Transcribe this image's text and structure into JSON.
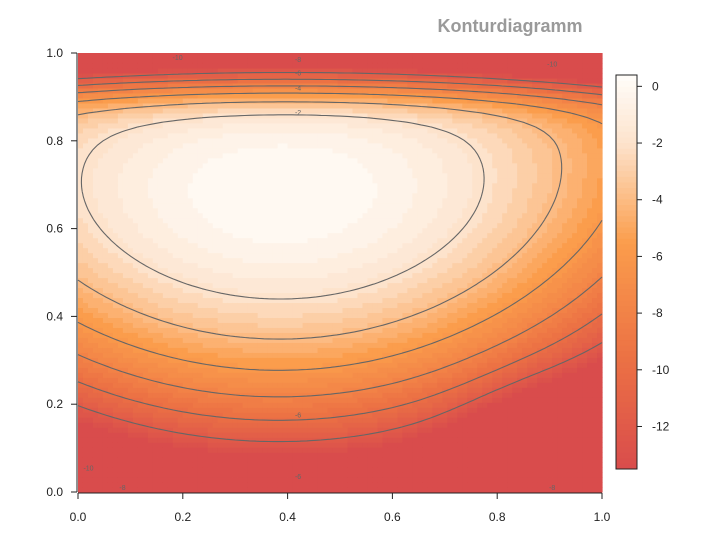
{
  "chart_data": {
    "type": "heatmap",
    "subtype": "filled-contour",
    "title": "Konturdiagramm",
    "xlabel": "",
    "ylabel": "",
    "xlim": [
      0,
      1
    ],
    "ylim": [
      0,
      1
    ],
    "x_ticks": [
      "0.0",
      "0.2",
      "0.4",
      "0.6",
      "0.8",
      "1.0"
    ],
    "y_ticks": [
      "0.0",
      "0.2",
      "0.4",
      "0.6",
      "0.8",
      "1.0"
    ],
    "colorbar": {
      "range": [
        -13.5,
        0.4
      ],
      "ticks": [
        0,
        -2,
        -4,
        -6,
        -8,
        -10,
        -12
      ],
      "tick_labels": [
        "0",
        "-2",
        "-4",
        "-6",
        "-8",
        "-10",
        "-12"
      ],
      "colors": {
        "max": "#fffdfa",
        "high": "#fde3cc",
        "mid": "#fb9d4c",
        "low": "#ec7244",
        "min": "#d94c4c"
      }
    },
    "contour_levels": [
      -12,
      -10,
      -8,
      -6,
      -4,
      -2
    ],
    "contour_labels": [
      {
        "x": 0.19,
        "y": 0.99,
        "text": "-10"
      },
      {
        "x": 0.42,
        "y": 0.985,
        "text": "-8"
      },
      {
        "x": 0.42,
        "y": 0.955,
        "text": "-6"
      },
      {
        "x": 0.42,
        "y": 0.92,
        "text": "-4"
      },
      {
        "x": 0.42,
        "y": 0.865,
        "text": "-2"
      },
      {
        "x": 0.905,
        "y": 0.975,
        "text": "-10"
      },
      {
        "x": 0.42,
        "y": 0.175,
        "text": "-6"
      },
      {
        "x": 0.42,
        "y": 0.035,
        "text": "-6"
      },
      {
        "x": 0.02,
        "y": 0.055,
        "text": "-10"
      },
      {
        "x": 0.085,
        "y": 0.01,
        "text": "-8"
      },
      {
        "x": 0.905,
        "y": 0.01,
        "text": "-8"
      }
    ],
    "field": {
      "description": "smooth scalar field peaking (~0) near x=0.4, y=0.68; minima (~-13.5) at top edge and bottom-left corner; local low (~-10) near x=0.9, y=0.1",
      "peak": {
        "x": 0.4,
        "y": 0.68,
        "value": 0.3
      },
      "minima": [
        {
          "x": 0.0,
          "y": 1.0,
          "value": -13.5
        },
        {
          "x": 0.0,
          "y": 0.05,
          "value": -12.5
        },
        {
          "x": 0.9,
          "y": 0.1,
          "value": -10.0
        }
      ]
    }
  }
}
